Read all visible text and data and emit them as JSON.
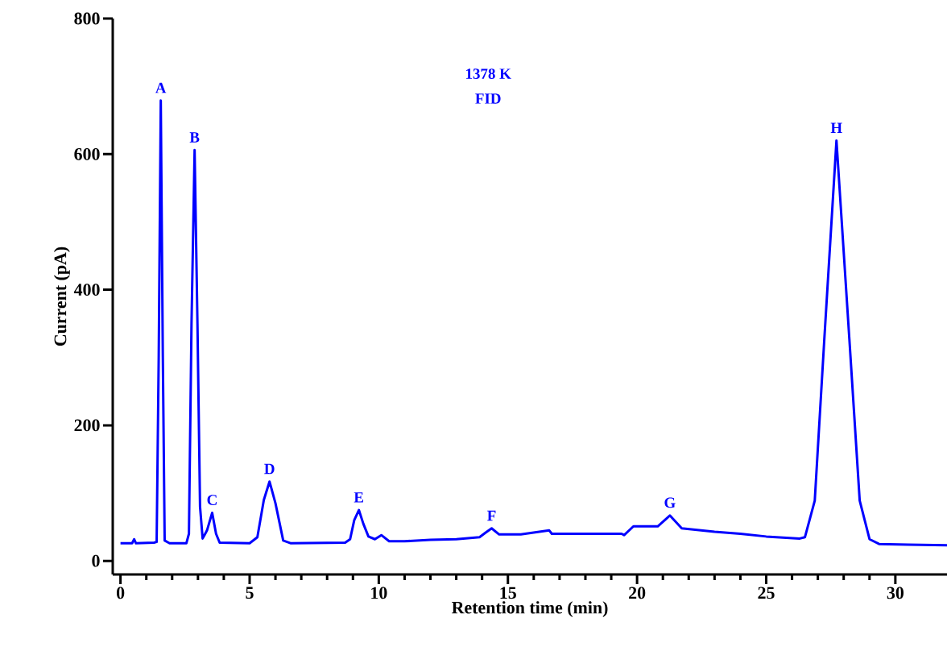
{
  "chart_data": {
    "type": "line",
    "xlabel": "Retention time (min)",
    "ylabel": "Current (pA)",
    "x": [
      0,
      0.45,
      0.53,
      0.6,
      1.3,
      1.4,
      1.48,
      1.56,
      1.64,
      1.71,
      1.9,
      2.55,
      2.65,
      2.75,
      2.87,
      2.98,
      3.08,
      3.18,
      3.35,
      3.55,
      3.7,
      3.84,
      5.0,
      5.3,
      5.55,
      5.77,
      6.0,
      6.3,
      6.6,
      8.7,
      8.89,
      9.05,
      9.23,
      9.4,
      9.6,
      9.85,
      10.1,
      10.4,
      11,
      12,
      13,
      13.9,
      14.15,
      14.37,
      14.66,
      15.5,
      16.6,
      16.7,
      19.4,
      19.5,
      19.86,
      20.8,
      21.27,
      21.73,
      23,
      24,
      25,
      26.3,
      26.5,
      26.88,
      27.25,
      27.72,
      28.22,
      28.62,
      29.0,
      29.37,
      30.5,
      32
    ],
    "series": [
      {
        "color": "#0000ff",
        "values": [
          26,
          26,
          32,
          26,
          27,
          28,
          300,
          679,
          300,
          30,
          26,
          26,
          40,
          350,
          606,
          350,
          80,
          33,
          45,
          71,
          40,
          27,
          26,
          35,
          90,
          117,
          85,
          30,
          26,
          27,
          32,
          60,
          75,
          55,
          36,
          32,
          38,
          29,
          29,
          31,
          32,
          35,
          42,
          48,
          39,
          39,
          45,
          40,
          40,
          38,
          51,
          51,
          67,
          48,
          43,
          40,
          36,
          33,
          35,
          89,
          327,
          620,
          327,
          89,
          32,
          25,
          24,
          23
        ]
      }
    ],
    "xlim": [
      -0.3,
      32
    ],
    "ylim": [
      -20,
      800
    ],
    "xticks": [
      0,
      5,
      10,
      15,
      20,
      25,
      30
    ],
    "yticks": [
      0,
      200,
      400,
      600,
      800
    ],
    "line_style": "solid",
    "marker": "none",
    "annotations": [
      {
        "text": "A",
        "x": 1.56,
        "y": 679
      },
      {
        "text": "B",
        "x": 2.87,
        "y": 606
      },
      {
        "text": "C",
        "x": 3.55,
        "y": 71
      },
      {
        "text": "D",
        "x": 5.77,
        "y": 117
      },
      {
        "text": "E",
        "x": 9.23,
        "y": 75
      },
      {
        "text": "F",
        "x": 14.37,
        "y": 48
      },
      {
        "text": "G",
        "x": 21.27,
        "y": 67
      },
      {
        "text": "H",
        "x": 27.72,
        "y": 620
      },
      "1378 K",
      "FID"
    ]
  }
}
